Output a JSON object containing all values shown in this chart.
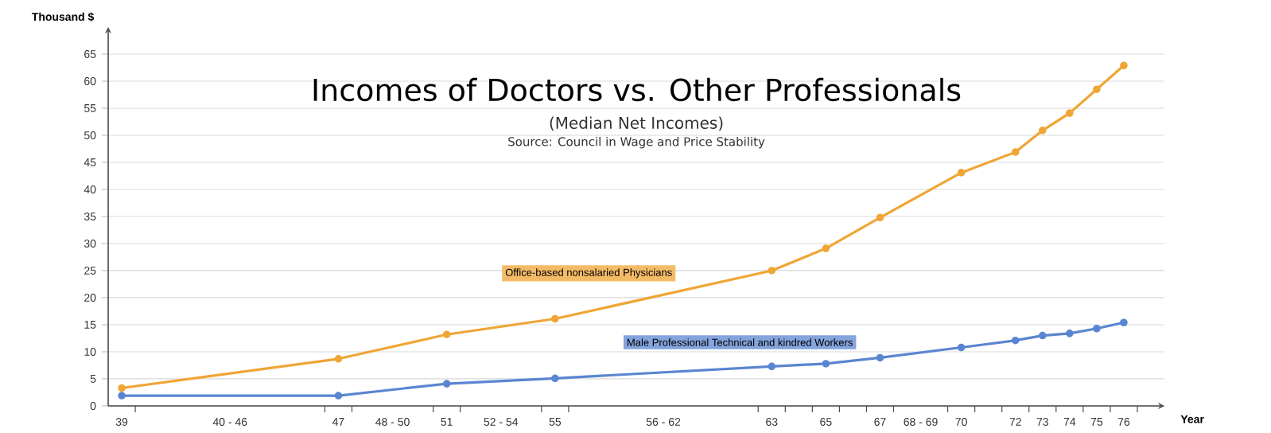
{
  "chart_data": {
    "type": "line",
    "title": "Incomes of Doctors vs. Other Professionals",
    "subtitle": "(Median Net Incomes)",
    "annotations": [
      "Source: Council in Wage and Price Stability"
    ],
    "xlabel": "Year",
    "ylabel": "Thousand $",
    "x": [
      39,
      47,
      51,
      55,
      63,
      65,
      67,
      70,
      72,
      73,
      74,
      75,
      76
    ],
    "series": [
      {
        "name": "Office-based nonsalaried Physicians",
        "color": "#f0a535",
        "values": [
          3.3,
          8.7,
          13.2,
          16.1,
          25.0,
          29.1,
          34.8,
          43.1,
          46.9,
          50.9,
          54.1,
          58.5,
          62.9
        ]
      },
      {
        "name": "Male Professional Technical and kindred Workers",
        "color": "#5a85d0",
        "values": [
          1.9,
          1.9,
          4.1,
          5.1,
          7.3,
          7.8,
          8.9,
          10.8,
          12.1,
          13.0,
          13.4,
          14.3,
          15.4
        ]
      }
    ],
    "xlim": [
      38.5,
      77.5
    ],
    "ylim": [
      0,
      70
    ],
    "xticks": [
      39,
      {
        "value": 39.5,
        "label": null
      },
      {
        "value": 43,
        "label": "40 - 46"
      },
      {
        "value": 46.5,
        "label": null
      },
      47,
      {
        "value": 47.5,
        "label": null
      },
      {
        "value": 49,
        "label": "48 - 50"
      },
      {
        "value": 50.5,
        "label": null
      },
      51,
      {
        "value": 51.5,
        "label": null
      },
      {
        "value": 53,
        "label": "52 - 54"
      },
      {
        "value": 54.5,
        "label": null
      },
      55,
      {
        "value": 55.5,
        "label": null
      },
      {
        "value": 59,
        "label": "56 - 62"
      },
      {
        "value": 62.5,
        "label": null
      },
      63,
      {
        "value": 63.5,
        "label": null
      },
      {
        "value": 64.5,
        "label": null
      },
      65,
      {
        "value": 65.5,
        "label": null
      },
      {
        "value": 66.5,
        "label": null
      },
      67,
      {
        "value": 67.5,
        "label": null
      },
      {
        "value": 68.5,
        "label": "68 - 69"
      },
      {
        "value": 69.5,
        "label": null
      },
      70,
      {
        "value": 70.5,
        "label": null
      },
      {
        "value": 71.5,
        "label": null
      },
      72,
      {
        "value": 72.5,
        "label": null
      },
      73,
      {
        "value": 73.5,
        "label": null
      },
      74,
      {
        "value": 74.5,
        "label": null
      },
      75,
      {
        "value": 75.5,
        "label": null
      },
      76,
      {
        "value": 76.5,
        "label": null
      }
    ],
    "yticks": [
      0,
      5,
      10,
      15,
      20,
      25,
      30,
      35,
      40,
      45,
      50,
      55,
      60,
      65
    ],
    "grid": "y",
    "legend": false,
    "marker": "circle",
    "line_style": "solid"
  }
}
